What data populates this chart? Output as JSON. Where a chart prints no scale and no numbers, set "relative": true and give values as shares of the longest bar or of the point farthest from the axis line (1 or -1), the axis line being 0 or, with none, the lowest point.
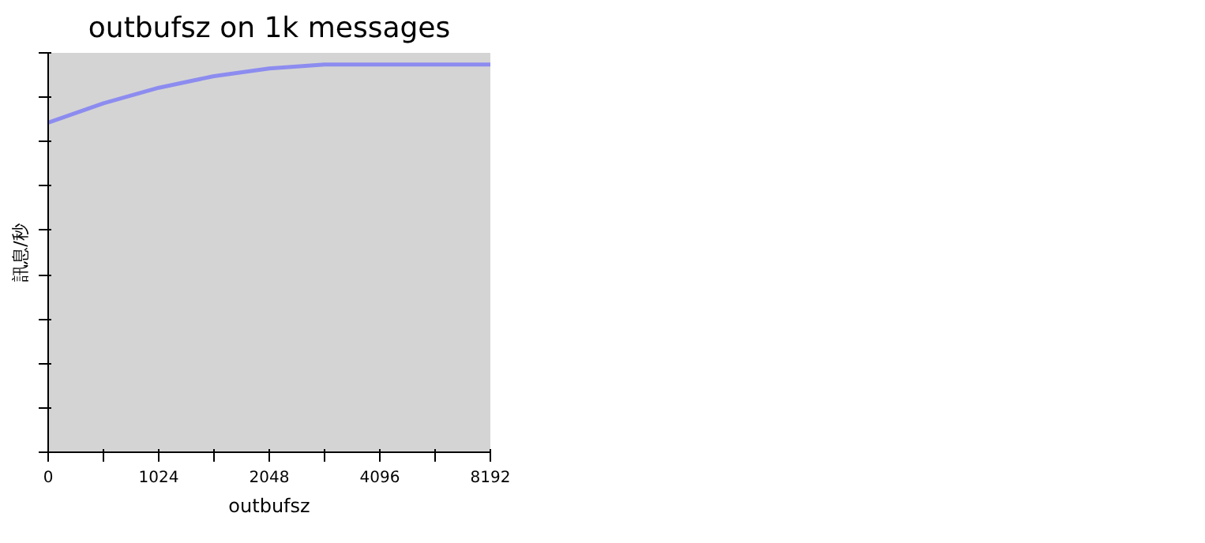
{
  "chart_data": {
    "type": "line",
    "title": "outbufsz on 1k messages",
    "xlabel": "outbufsz",
    "ylabel": "訊息/秒",
    "relative": true,
    "categories": [
      "0",
      null,
      "1024",
      null,
      "2048",
      null,
      "4096",
      null,
      "8192"
    ],
    "series": [
      {
        "color": "#8c8cf0",
        "values": [
          0.85,
          0.9,
          0.94,
          0.97,
          0.99,
          1,
          1,
          1,
          1
        ]
      }
    ],
    "grid": false,
    "marker": "none",
    "line_style": "solid"
  }
}
